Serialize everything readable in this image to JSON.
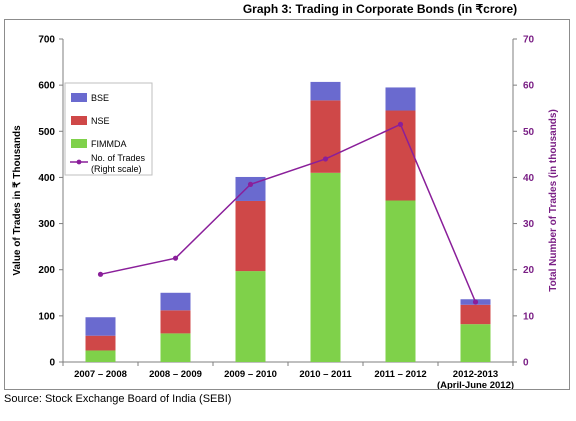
{
  "title": "Graph 3: Trading in Corporate Bonds (in ₹crore)",
  "source": "Source: Stock Exchange Board of India (SEBI)",
  "colors": {
    "BSE": "#6a6acf",
    "NSE": "#cf4848",
    "FIMMDA": "#7fd14a",
    "trades": "#8a1f9a",
    "right_axis": "#7a1f85"
  },
  "chart_data": {
    "type": "bar",
    "stacked": true,
    "categories": [
      "2007 – 2008",
      "2008 – 2009",
      "2009 – 2010",
      "2010 – 2011",
      "2011 – 2012",
      "2012-2013 (April-June 2012)"
    ],
    "category_lines": [
      [
        "2007 – 2008"
      ],
      [
        "2008 – 2009"
      ],
      [
        "2009 – 2010"
      ],
      [
        "2010 – 2011"
      ],
      [
        "2011 – 2012"
      ],
      [
        "2012-2013",
        "(April-June 2012)"
      ]
    ],
    "series": [
      {
        "name": "FIMMDA",
        "values": [
          25,
          62,
          197,
          410,
          350,
          82
        ]
      },
      {
        "name": "NSE",
        "values": [
          32,
          50,
          152,
          157,
          195,
          42
        ]
      },
      {
        "name": "BSE",
        "values": [
          40,
          38,
          52,
          40,
          50,
          12
        ]
      }
    ],
    "line_series": {
      "name": "No. of Trades (Right scale)",
      "name_lines": [
        "No. of Trades",
        "(Right scale)"
      ],
      "values": [
        19,
        22.5,
        38.5,
        44,
        51.5,
        13
      ]
    },
    "ylabel": "Value of Trades in ₹ Thousands",
    "y2label": "Total Number of Trades (in thousands)",
    "ylim": [
      0,
      700
    ],
    "y2lim": [
      0,
      70
    ],
    "yticks": [
      0,
      100,
      200,
      300,
      400,
      500,
      600,
      700
    ],
    "y2ticks": [
      0,
      10,
      20,
      30,
      40,
      50,
      60,
      70
    ],
    "grid": false,
    "legend_position": "top-left",
    "legend_order": [
      "BSE",
      "NSE",
      "FIMMDA",
      "No. of Trades (Right scale)"
    ]
  }
}
